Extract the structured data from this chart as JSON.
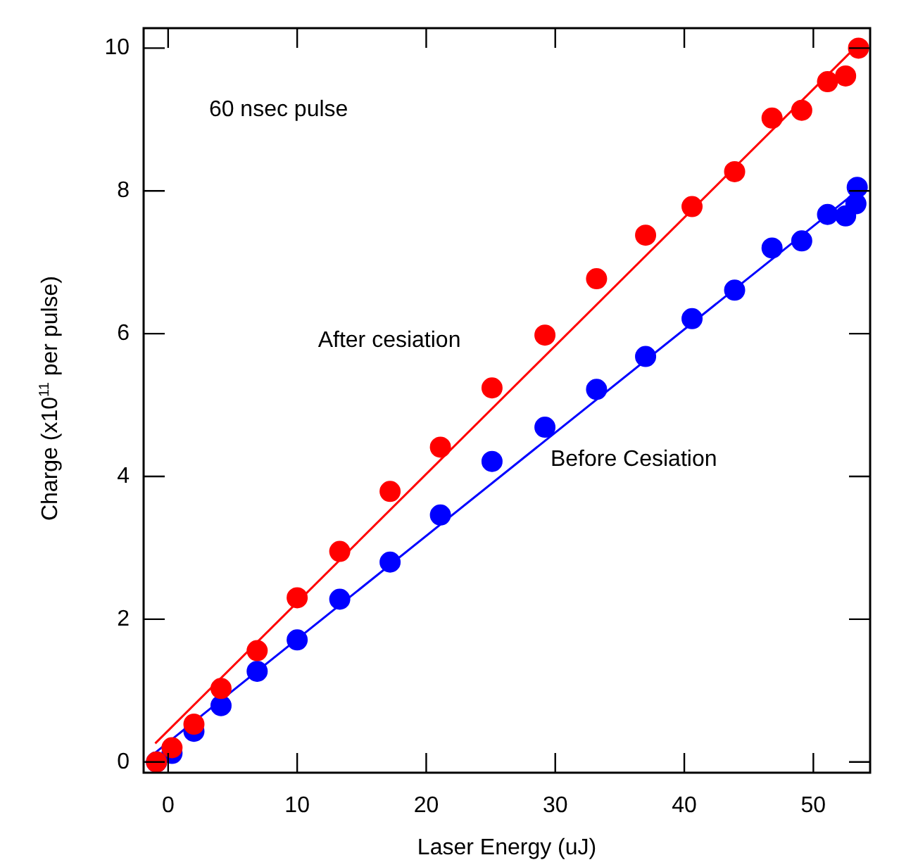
{
  "chart_data": {
    "type": "scatter",
    "xlabel": "Laser Energy (uJ)",
    "ylabel": "Charge (x10$^{11}$ per pulse)",
    "xlim": [
      -1.9,
      54.4
    ],
    "ylim": [
      -0.15,
      10.28
    ],
    "xticks": [
      0,
      10,
      20,
      30,
      40,
      50
    ],
    "yticks": [
      0,
      2,
      4,
      6,
      8,
      10
    ],
    "grid": false,
    "legend": false,
    "marker": "circle",
    "annotations": [
      "60 nsec pulse"
    ],
    "series": [
      {
        "name": "After cesiation",
        "color": "#ff0000",
        "x": [
          -0.9,
          0.3,
          2.0,
          4.1,
          6.9,
          10.0,
          13.3,
          17.2,
          21.1,
          25.1,
          29.2,
          33.2,
          37.0,
          40.6,
          43.9,
          46.8,
          49.1,
          51.1,
          52.5,
          53.3,
          53.5
        ],
        "values": [
          0,
          0.2,
          0.53,
          1.03,
          1.56,
          2.3,
          2.95,
          3.79,
          4.41,
          5.24,
          5.98,
          6.77,
          7.38,
          7.78,
          8.27,
          9.02,
          9.13,
          9.53,
          9.61,
          null,
          10.0
        ]
      },
      {
        "name": "Before Cesiation",
        "color": "#0000ff",
        "x": [
          -0.9,
          0.3,
          2.0,
          4.1,
          6.9,
          10.0,
          13.3,
          17.2,
          21.1,
          25.1,
          29.2,
          33.2,
          37.0,
          40.6,
          43.9,
          46.8,
          49.1,
          51.1,
          52.5,
          53.3,
          53.4
        ],
        "values": [
          0,
          0.12,
          0.43,
          0.79,
          1.27,
          1.71,
          2.28,
          2.8,
          3.46,
          4.21,
          4.69,
          5.22,
          5.68,
          6.21,
          6.61,
          7.2,
          7.3,
          7.67,
          7.65,
          7.82,
          8.05
        ]
      },
      {
        "type": "line",
        "color": "#ff0000",
        "marker": "none",
        "x": [
          -1.0,
          53.2
        ],
        "values": [
          0.26,
          10.0
        ]
      },
      {
        "type": "line",
        "color": "#0000ff",
        "marker": "none",
        "x": [
          -1.0,
          53.2
        ],
        "values": [
          0.13,
          7.97
        ]
      }
    ]
  }
}
